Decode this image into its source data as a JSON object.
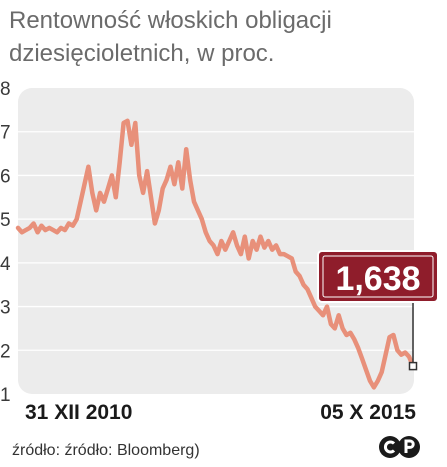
{
  "title_line1": "Rentowność włoskich obligacji",
  "title_line2": "dziesięcioletnich, w proc.",
  "source": "źródło: źródło: Bloomberg)",
  "logo_text": "CP",
  "colors": {
    "line": "#e8907a",
    "plot_bg": "#ececec",
    "callout": "#8f1d2b",
    "grid": "#ffffff"
  },
  "chart_data": {
    "type": "line",
    "title": "Rentowność włoskich obligacji dziesięcioletnich, w proc.",
    "ylim": [
      1,
      8
    ],
    "yticks": [
      "1",
      "2",
      "3",
      "4",
      "5",
      "6",
      "7",
      "8"
    ],
    "x_start_label": "31 XII 2010",
    "x_end_label": "05 X 2015",
    "grid": true,
    "last_value_label": "1,638",
    "series": [
      {
        "values": [
          4.8,
          4.7,
          4.75,
          4.8,
          4.9,
          4.7,
          4.85,
          4.75,
          4.8,
          4.75,
          4.7,
          4.8,
          4.75,
          4.9,
          4.85,
          5.0,
          5.4,
          5.8,
          6.2,
          5.6,
          5.2,
          5.6,
          5.4,
          5.7,
          6.0,
          5.5,
          6.3,
          7.2,
          7.25,
          6.7,
          7.2,
          6.0,
          5.6,
          6.1,
          5.5,
          4.9,
          5.2,
          5.7,
          5.9,
          6.2,
          5.8,
          6.3,
          5.7,
          6.6,
          5.9,
          5.4,
          5.2,
          5.0,
          4.7,
          4.5,
          4.4,
          4.2,
          4.5,
          4.3,
          4.5,
          4.7,
          4.4,
          4.2,
          4.6,
          4.1,
          4.5,
          4.3,
          4.6,
          4.35,
          4.5,
          4.3,
          4.4,
          4.2,
          4.2,
          4.15,
          4.1,
          3.8,
          3.7,
          3.5,
          3.4,
          3.2,
          3.0,
          2.9,
          2.8,
          3.0,
          2.6,
          2.5,
          2.8,
          2.5,
          2.35,
          2.4,
          2.25,
          2.05,
          1.8,
          1.55,
          1.3,
          1.15,
          1.3,
          1.5,
          1.9,
          2.3,
          2.35,
          2.0,
          1.9,
          1.95,
          1.85,
          1.638
        ]
      }
    ]
  }
}
